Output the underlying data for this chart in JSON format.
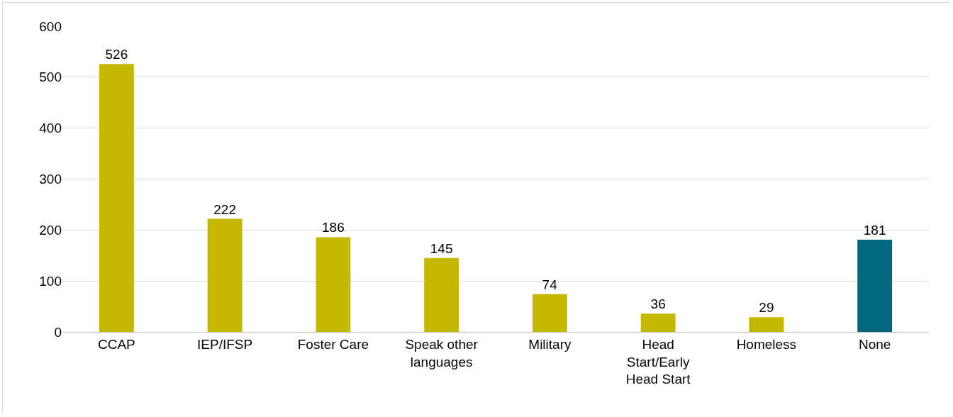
{
  "chart_data": {
    "type": "bar",
    "categories": [
      "CCAP",
      "IEP/IFSP",
      "Foster Care",
      "Speak other languages",
      "Military",
      "Head Start/Early Head Start",
      "Homeless",
      "None"
    ],
    "values": [
      526,
      222,
      186,
      145,
      74,
      36,
      29,
      181
    ],
    "colors": [
      "#c4b900",
      "#c4b900",
      "#c4b900",
      "#c4b900",
      "#c4b900",
      "#c4b900",
      "#c4b900",
      "#00677f"
    ],
    "ylim": [
      0,
      600
    ],
    "yticks": [
      0,
      100,
      200,
      300,
      400,
      500,
      600
    ],
    "grid": "y",
    "data_labels": true
  }
}
